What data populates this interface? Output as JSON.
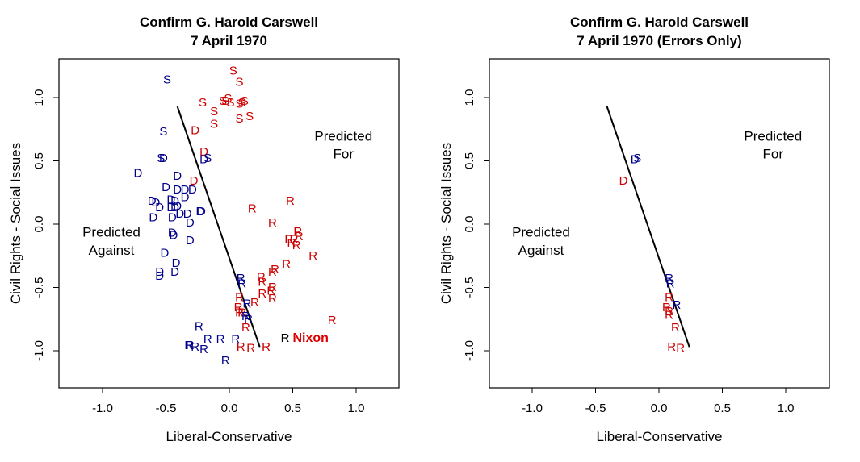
{
  "chart_data": [
    {
      "type": "scatter",
      "title": "Confirm G. Harold Carswell",
      "subtitle": "7 April 1970",
      "xlabel": "Liberal-Conservative",
      "ylabel": "Civil Rights - Social Issues",
      "xlim": [
        -1.35,
        1.35
      ],
      "ylim": [
        -1.3,
        1.3
      ],
      "xticks": [
        "-1.0",
        "-0.5",
        "0.0",
        "0.5",
        "1.0"
      ],
      "yticks": [
        "-1.0",
        "-0.5",
        "0.0",
        "0.5",
        "1.0"
      ],
      "grid": false,
      "colors": {
        "correct": "#cc0000",
        "error": "#00008b",
        "president": "#000000"
      },
      "annotations": [
        {
          "text": [
            "Predicted",
            "For"
          ],
          "x": 0.9,
          "y": 0.66
        },
        {
          "text": [
            "Predicted",
            "Against"
          ],
          "x": -0.93,
          "y": -0.1
        },
        {
          "text": "Nixon",
          "x": 0.5,
          "y": -0.9,
          "color": "#dd0000"
        }
      ],
      "cutting_line": {
        "x": [
          -0.41,
          0.24
        ],
        "y": [
          0.93,
          -0.97
        ]
      },
      "points": [
        {
          "label": "S",
          "x": -0.49,
          "y": 1.14,
          "c": "error"
        },
        {
          "label": "S",
          "x": 0.03,
          "y": 1.21,
          "c": "correct"
        },
        {
          "label": "S",
          "x": 0.08,
          "y": 1.12,
          "c": "correct"
        },
        {
          "label": "S",
          "x": -0.21,
          "y": 0.96,
          "c": "correct"
        },
        {
          "label": "S",
          "x": -0.12,
          "y": 0.89,
          "c": "correct"
        },
        {
          "label": "S",
          "x": -0.12,
          "y": 0.79,
          "c": "correct"
        },
        {
          "label": "S",
          "x": -0.05,
          "y": 0.97,
          "c": "correct"
        },
        {
          "label": "S",
          "x": -0.03,
          "y": 0.97,
          "c": "correct"
        },
        {
          "label": "S",
          "x": -0.01,
          "y": 0.99,
          "c": "correct"
        },
        {
          "label": "S",
          "x": 0.01,
          "y": 0.96,
          "c": "correct"
        },
        {
          "label": "S",
          "x": 0.08,
          "y": 0.95,
          "c": "correct"
        },
        {
          "label": "S",
          "x": 0.1,
          "y": 0.96,
          "c": "correct"
        },
        {
          "label": "S",
          "x": 0.12,
          "y": 0.97,
          "c": "correct"
        },
        {
          "label": "S",
          "x": 0.08,
          "y": 0.83,
          "c": "correct"
        },
        {
          "label": "S",
          "x": 0.16,
          "y": 0.85,
          "c": "correct"
        },
        {
          "label": "S",
          "x": -0.52,
          "y": 0.73,
          "c": "error"
        },
        {
          "label": "D",
          "x": -0.27,
          "y": 0.74,
          "c": "correct"
        },
        {
          "label": "S",
          "x": -0.54,
          "y": 0.52,
          "c": "error"
        },
        {
          "label": "D",
          "x": -0.52,
          "y": 0.52,
          "c": "error"
        },
        {
          "label": "D",
          "x": -0.2,
          "y": 0.57,
          "c": "correct"
        },
        {
          "label": "D",
          "x": -0.2,
          "y": 0.51,
          "c": "error"
        },
        {
          "label": "S",
          "x": -0.17,
          "y": 0.52,
          "c": "error"
        },
        {
          "label": "D",
          "x": -0.72,
          "y": 0.4,
          "c": "error"
        },
        {
          "label": "D",
          "x": -0.41,
          "y": 0.38,
          "c": "error"
        },
        {
          "label": "D",
          "x": -0.28,
          "y": 0.34,
          "c": "correct"
        },
        {
          "label": "D",
          "x": -0.5,
          "y": 0.29,
          "c": "error"
        },
        {
          "label": "D",
          "x": -0.41,
          "y": 0.27,
          "c": "error"
        },
        {
          "label": "D",
          "x": -0.35,
          "y": 0.27,
          "c": "error"
        },
        {
          "label": "D",
          "x": -0.29,
          "y": 0.27,
          "c": "error"
        },
        {
          "label": "D",
          "x": -0.35,
          "y": 0.21,
          "c": "error"
        },
        {
          "label": "D",
          "x": -0.61,
          "y": 0.18,
          "c": "error"
        },
        {
          "label": "D",
          "x": -0.58,
          "y": 0.17,
          "c": "error"
        },
        {
          "label": "D",
          "x": -0.55,
          "y": 0.13,
          "c": "error"
        },
        {
          "label": "D",
          "x": -0.46,
          "y": 0.19,
          "c": "error"
        },
        {
          "label": "D",
          "x": -0.43,
          "y": 0.18,
          "c": "error"
        },
        {
          "label": "D",
          "x": -0.46,
          "y": 0.13,
          "c": "error"
        },
        {
          "label": "D",
          "x": -0.43,
          "y": 0.13,
          "c": "error"
        },
        {
          "label": "D",
          "x": -0.41,
          "y": 0.14,
          "c": "error"
        },
        {
          "label": "D",
          "x": -0.6,
          "y": 0.05,
          "c": "error"
        },
        {
          "label": "D",
          "x": -0.45,
          "y": 0.05,
          "c": "error"
        },
        {
          "label": "D",
          "x": -0.39,
          "y": 0.08,
          "c": "error"
        },
        {
          "label": "D",
          "x": -0.33,
          "y": 0.08,
          "c": "error"
        },
        {
          "label": "D",
          "x": -0.23,
          "y": 0.1,
          "c": "error"
        },
        {
          "label": "D",
          "x": -0.22,
          "y": 0.1,
          "c": "error"
        },
        {
          "label": "D",
          "x": -0.31,
          "y": 0.01,
          "c": "error"
        },
        {
          "label": "D",
          "x": -0.45,
          "y": -0.07,
          "c": "error"
        },
        {
          "label": "D",
          "x": -0.44,
          "y": -0.09,
          "c": "error"
        },
        {
          "label": "D",
          "x": -0.31,
          "y": -0.13,
          "c": "error"
        },
        {
          "label": "D",
          "x": -0.51,
          "y": -0.23,
          "c": "error"
        },
        {
          "label": "D",
          "x": -0.42,
          "y": -0.31,
          "c": "error"
        },
        {
          "label": "D",
          "x": -0.43,
          "y": -0.38,
          "c": "error"
        },
        {
          "label": "D",
          "x": -0.55,
          "y": -0.38,
          "c": "error"
        },
        {
          "label": "D",
          "x": -0.55,
          "y": -0.41,
          "c": "error"
        },
        {
          "label": "R",
          "x": 0.18,
          "y": 0.12,
          "c": "correct"
        },
        {
          "label": "R",
          "x": 0.48,
          "y": 0.18,
          "c": "correct"
        },
        {
          "label": "R",
          "x": 0.34,
          "y": 0.01,
          "c": "correct"
        },
        {
          "label": "R",
          "x": 0.54,
          "y": -0.06,
          "c": "correct"
        },
        {
          "label": "R",
          "x": 0.55,
          "y": -0.1,
          "c": "correct"
        },
        {
          "label": "R",
          "x": 0.51,
          "y": -0.12,
          "c": "correct"
        },
        {
          "label": "R",
          "x": 0.47,
          "y": -0.12,
          "c": "correct"
        },
        {
          "label": "R",
          "x": 0.49,
          "y": -0.15,
          "c": "correct"
        },
        {
          "label": "R",
          "x": 0.53,
          "y": -0.17,
          "c": "correct"
        },
        {
          "label": "R",
          "x": 0.66,
          "y": -0.25,
          "c": "correct"
        },
        {
          "label": "R",
          "x": 0.45,
          "y": -0.32,
          "c": "correct"
        },
        {
          "label": "R",
          "x": 0.36,
          "y": -0.36,
          "c": "correct"
        },
        {
          "label": "R",
          "x": 0.34,
          "y": -0.38,
          "c": "correct"
        },
        {
          "label": "R",
          "x": 0.25,
          "y": -0.42,
          "c": "correct"
        },
        {
          "label": "R",
          "x": 0.26,
          "y": -0.46,
          "c": "correct"
        },
        {
          "label": "R",
          "x": 0.34,
          "y": -0.5,
          "c": "correct"
        },
        {
          "label": "R",
          "x": 0.33,
          "y": -0.53,
          "c": "correct"
        },
        {
          "label": "R",
          "x": 0.26,
          "y": -0.55,
          "c": "correct"
        },
        {
          "label": "R",
          "x": 0.34,
          "y": -0.59,
          "c": "correct"
        },
        {
          "label": "R",
          "x": 0.09,
          "y": -0.43,
          "c": "error"
        },
        {
          "label": "R",
          "x": 0.1,
          "y": -0.47,
          "c": "error"
        },
        {
          "label": "R",
          "x": 0.08,
          "y": -0.58,
          "c": "correct"
        },
        {
          "label": "R",
          "x": 0.07,
          "y": -0.66,
          "c": "correct"
        },
        {
          "label": "R",
          "x": 0.08,
          "y": -0.7,
          "c": "correct"
        },
        {
          "label": "R",
          "x": 0.1,
          "y": -0.7,
          "c": "correct"
        },
        {
          "label": "R",
          "x": 0.14,
          "y": -0.63,
          "c": "error"
        },
        {
          "label": "R",
          "x": 0.2,
          "y": -0.62,
          "c": "correct"
        },
        {
          "label": "R",
          "x": 0.13,
          "y": -0.73,
          "c": "error"
        },
        {
          "label": "R",
          "x": 0.15,
          "y": -0.75,
          "c": "error"
        },
        {
          "label": "R",
          "x": 0.13,
          "y": -0.82,
          "c": "correct"
        },
        {
          "label": "R",
          "x": -0.24,
          "y": -0.81,
          "c": "error"
        },
        {
          "label": "R",
          "x": -0.17,
          "y": -0.91,
          "c": "error"
        },
        {
          "label": "R",
          "x": -0.07,
          "y": -0.91,
          "c": "error"
        },
        {
          "label": "R",
          "x": 0.05,
          "y": -0.91,
          "c": "error"
        },
        {
          "label": "R",
          "x": -0.32,
          "y": -0.96,
          "c": "error"
        },
        {
          "label": "R",
          "x": -0.31,
          "y": -0.96,
          "c": "error"
        },
        {
          "label": "R",
          "x": -0.27,
          "y": -0.97,
          "c": "error"
        },
        {
          "label": "R",
          "x": -0.2,
          "y": -0.99,
          "c": "error"
        },
        {
          "label": "R",
          "x": -0.03,
          "y": -1.08,
          "c": "error"
        },
        {
          "label": "R",
          "x": 0.09,
          "y": -0.97,
          "c": "correct"
        },
        {
          "label": "R",
          "x": 0.17,
          "y": -0.98,
          "c": "correct"
        },
        {
          "label": "R",
          "x": 0.29,
          "y": -0.97,
          "c": "correct"
        },
        {
          "label": "R",
          "x": 0.44,
          "y": -0.9,
          "c": "president"
        },
        {
          "label": "R",
          "x": 0.81,
          "y": -0.76,
          "c": "correct"
        }
      ]
    },
    {
      "type": "scatter",
      "title": "Confirm G. Harold Carswell",
      "subtitle": "7 April 1970 (Errors Only)",
      "xlabel": "Liberal-Conservative",
      "ylabel": "Civil Rights - Social Issues",
      "xlim": [
        -1.35,
        1.35
      ],
      "ylim": [
        -1.3,
        1.3
      ],
      "xticks": [
        "-1.0",
        "-0.5",
        "0.0",
        "0.5",
        "1.0"
      ],
      "yticks": [
        "-1.0",
        "-0.5",
        "0.0",
        "0.5",
        "1.0"
      ],
      "grid": false,
      "colors": {
        "correct": "#cc0000",
        "error": "#00008b",
        "president": "#000000"
      },
      "annotations": [
        {
          "text": [
            "Predicted",
            "For"
          ],
          "x": 0.9,
          "y": 0.66
        },
        {
          "text": [
            "Predicted",
            "Against"
          ],
          "x": -0.93,
          "y": -0.1
        }
      ],
      "cutting_line": {
        "x": [
          -0.41,
          0.24
        ],
        "y": [
          0.93,
          -0.97
        ]
      },
      "points": [
        {
          "label": "D",
          "x": -0.19,
          "y": 0.51,
          "c": "error"
        },
        {
          "label": "S",
          "x": -0.17,
          "y": 0.52,
          "c": "error"
        },
        {
          "label": "D",
          "x": -0.28,
          "y": 0.34,
          "c": "correct"
        },
        {
          "label": "R",
          "x": 0.08,
          "y": -0.43,
          "c": "error"
        },
        {
          "label": "R",
          "x": 0.09,
          "y": -0.47,
          "c": "error"
        },
        {
          "label": "R",
          "x": 0.08,
          "y": -0.58,
          "c": "correct"
        },
        {
          "label": "R",
          "x": 0.06,
          "y": -0.66,
          "c": "correct"
        },
        {
          "label": "R",
          "x": 0.08,
          "y": -0.69,
          "c": "correct"
        },
        {
          "label": "R",
          "x": 0.08,
          "y": -0.72,
          "c": "correct"
        },
        {
          "label": "R",
          "x": 0.14,
          "y": -0.64,
          "c": "error"
        },
        {
          "label": "R",
          "x": 0.13,
          "y": -0.82,
          "c": "correct"
        },
        {
          "label": "R",
          "x": 0.1,
          "y": -0.97,
          "c": "correct"
        },
        {
          "label": "R",
          "x": 0.17,
          "y": -0.98,
          "c": "correct"
        }
      ]
    }
  ]
}
